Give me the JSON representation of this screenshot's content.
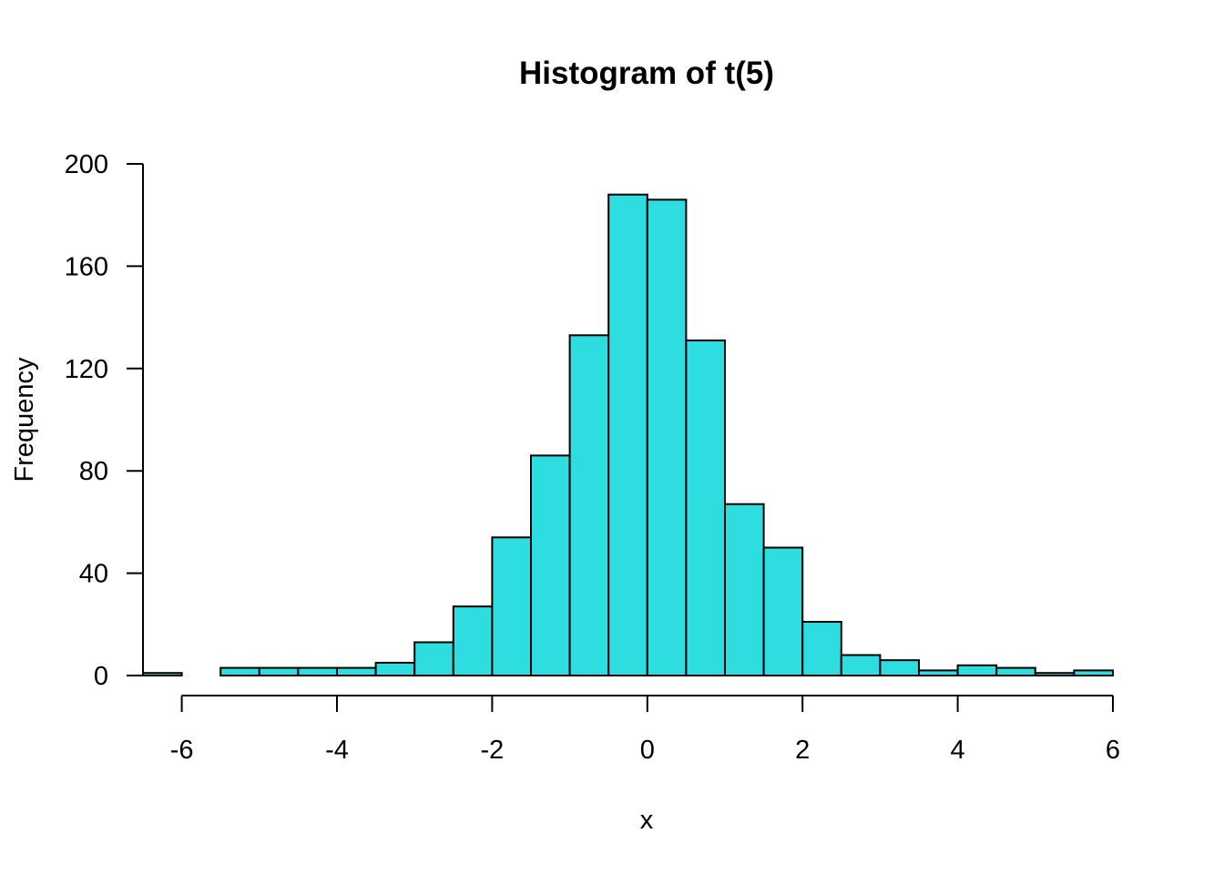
{
  "chart_data": {
    "type": "bar",
    "title": "Histogram of t(5)",
    "xlabel": "x",
    "ylabel": "Frequency",
    "bin_width": 0.5,
    "bins": [
      {
        "start": -6.5,
        "end": -6.0,
        "count": 1
      },
      {
        "start": -6.0,
        "end": -5.5,
        "count": 0
      },
      {
        "start": -5.5,
        "end": -5.0,
        "count": 3
      },
      {
        "start": -5.0,
        "end": -4.5,
        "count": 3
      },
      {
        "start": -4.5,
        "end": -4.0,
        "count": 3
      },
      {
        "start": -4.0,
        "end": -3.5,
        "count": 3
      },
      {
        "start": -3.5,
        "end": -3.0,
        "count": 5
      },
      {
        "start": -3.0,
        "end": -2.5,
        "count": 13
      },
      {
        "start": -2.5,
        "end": -2.0,
        "count": 27
      },
      {
        "start": -2.0,
        "end": -1.5,
        "count": 54
      },
      {
        "start": -1.5,
        "end": -1.0,
        "count": 86
      },
      {
        "start": -1.0,
        "end": -0.5,
        "count": 133
      },
      {
        "start": -0.5,
        "end": 0.0,
        "count": 188
      },
      {
        "start": 0.0,
        "end": 0.5,
        "count": 186
      },
      {
        "start": 0.5,
        "end": 1.0,
        "count": 131
      },
      {
        "start": 1.0,
        "end": 1.5,
        "count": 67
      },
      {
        "start": 1.5,
        "end": 2.0,
        "count": 50
      },
      {
        "start": 2.0,
        "end": 2.5,
        "count": 21
      },
      {
        "start": 2.5,
        "end": 3.0,
        "count": 8
      },
      {
        "start": 3.0,
        "end": 3.5,
        "count": 6
      },
      {
        "start": 3.5,
        "end": 4.0,
        "count": 2
      },
      {
        "start": 4.0,
        "end": 4.5,
        "count": 4
      },
      {
        "start": 4.5,
        "end": 5.0,
        "count": 3
      },
      {
        "start": 5.0,
        "end": 5.5,
        "count": 1
      },
      {
        "start": 5.5,
        "end": 6.0,
        "count": 2
      }
    ],
    "xlim": [
      -6.5,
      6.0
    ],
    "ylim": [
      0,
      200
    ],
    "x_ticks": [
      -6,
      -4,
      -2,
      0,
      2,
      4,
      6
    ],
    "x_tick_labels": [
      "-6",
      "-4",
      "-2",
      "0",
      "2",
      "4",
      "6"
    ],
    "y_ticks": [
      0,
      40,
      80,
      120,
      160,
      200
    ],
    "y_tick_labels": [
      "0",
      "40",
      "80",
      "120",
      "160",
      "200"
    ],
    "grid": false,
    "legend": "none",
    "colors": {
      "bar_fill": "#2ddddf",
      "bar_stroke": "#000000",
      "axis": "#000000",
      "background": "#ffffff"
    }
  }
}
